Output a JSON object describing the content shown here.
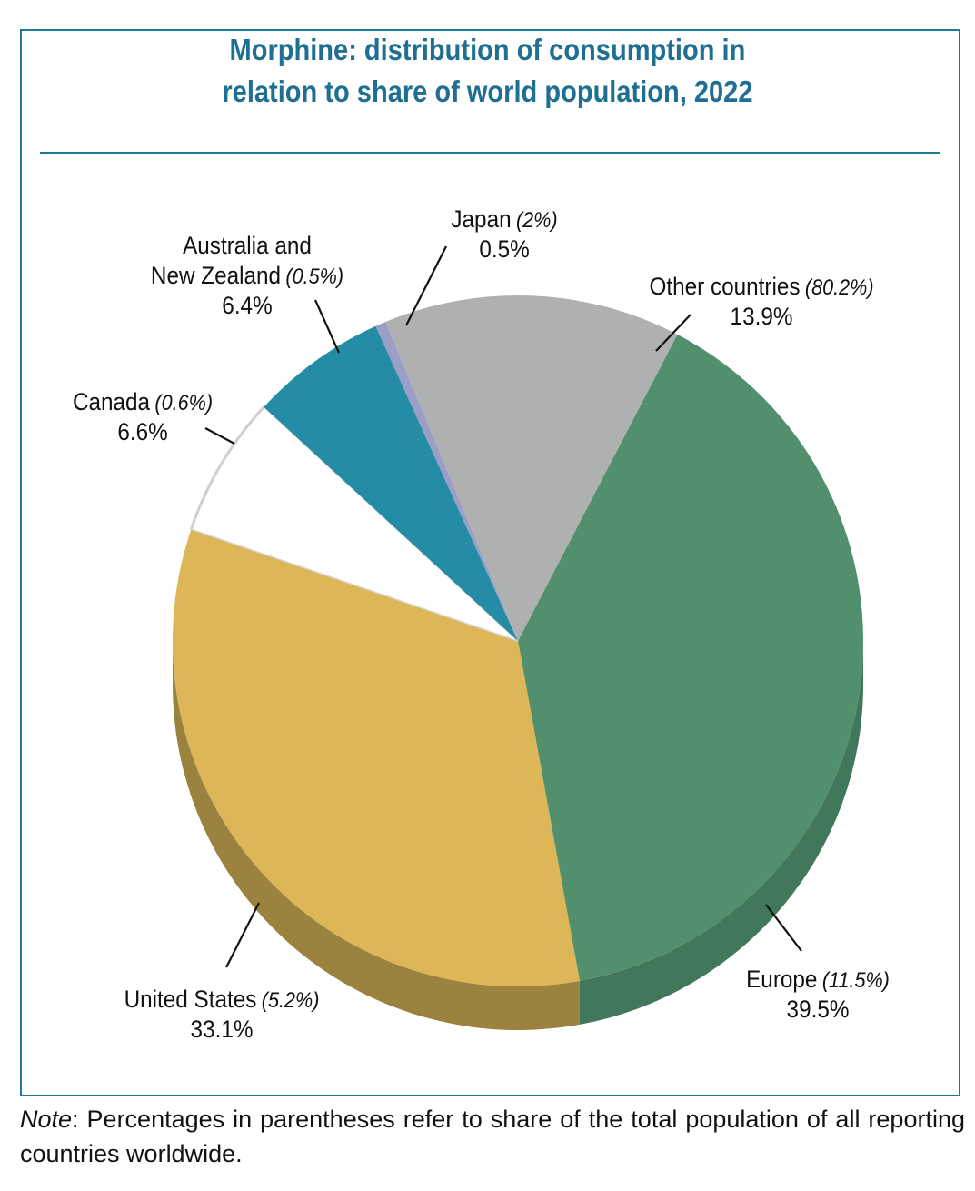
{
  "chart_data": {
    "type": "pie",
    "title_lines": [
      "Morphine: distribution of consumption in",
      "relation to share of world population, 2022"
    ],
    "slices": [
      {
        "label_lines": [
          "Europe"
        ],
        "share": "(11.5%)",
        "value": 39.5,
        "value_text": "39.5%",
        "color": "#528f6c",
        "side_color": "#41775a"
      },
      {
        "label_lines": [
          "United States"
        ],
        "share": "(5.2%)",
        "value": 33.1,
        "value_text": "33.1%",
        "color": "#dcb657",
        "side_color": "#9b823e"
      },
      {
        "label_lines": [
          "Canada"
        ],
        "share": "(0.6%)",
        "value": 6.6,
        "value_text": "6.6%",
        "color": "#ffffff",
        "side_color": "#cccccc"
      },
      {
        "label_lines": [
          "Australia and",
          "New Zealand"
        ],
        "share": "(0.5%)",
        "value": 6.4,
        "value_text": "6.4%",
        "color": "#248ca4",
        "side_color": "#1c6f83"
      },
      {
        "label_lines": [
          "Japan"
        ],
        "share": "(2%)",
        "value": 0.5,
        "value_text": "0.5%",
        "color": "#9b9ec6",
        "side_color": "#7e81a6"
      },
      {
        "label_lines": [
          "Other countries"
        ],
        "share": "(80.2%)",
        "value": 13.9,
        "value_text": "13.9%",
        "color": "#afb1b0",
        "side_color": "#8e908f"
      }
    ]
  },
  "note": {
    "prefix": "Note",
    "text": ": Percentages in parentheses refer to share of the total population of all reporting countries worldwide."
  }
}
